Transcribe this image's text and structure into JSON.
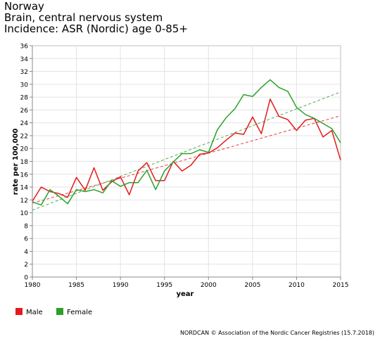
{
  "header": {
    "line1": "Norway",
    "line2": "Brain, central nervous system",
    "line3": "Incidence: ASR (Nordic) age 0-85+"
  },
  "footer": "NORDCAN © Association of the Nordic Cancer Registries (15.7.2018)",
  "chart_data": {
    "type": "line",
    "xlabel": "year",
    "ylabel": "rate per 100,000",
    "xlim": [
      1980,
      2015
    ],
    "ylim": [
      0,
      36
    ],
    "xticks": [
      1980,
      1985,
      1990,
      1995,
      2000,
      2005,
      2010,
      2015
    ],
    "yticks": [
      0,
      2,
      4,
      6,
      8,
      10,
      12,
      14,
      16,
      18,
      20,
      22,
      24,
      26,
      28,
      30,
      32,
      34,
      36
    ],
    "grid": true,
    "legend": "bottom-left",
    "x": [
      1980,
      1981,
      1982,
      1983,
      1984,
      1985,
      1986,
      1987,
      1988,
      1989,
      1990,
      1991,
      1992,
      1993,
      1994,
      1995,
      1996,
      1997,
      1998,
      1999,
      2000,
      2001,
      2002,
      2003,
      2004,
      2005,
      2006,
      2007,
      2008,
      2009,
      2010,
      2011,
      2012,
      2013,
      2014,
      2015
    ],
    "series": [
      {
        "name": "Male",
        "color": "#e41a1c",
        "values": [
          11.8,
          14.0,
          13.3,
          13.0,
          12.4,
          15.5,
          13.5,
          17.0,
          13.5,
          14.8,
          15.6,
          12.8,
          16.5,
          17.8,
          15.0,
          15.0,
          18.0,
          16.5,
          17.4,
          19.1,
          19.3,
          20.1,
          21.3,
          22.4,
          22.2,
          24.9,
          22.3,
          27.7,
          25.0,
          24.5,
          22.8,
          24.4,
          24.7,
          21.8,
          22.8,
          18.2
        ]
      },
      {
        "name": "Female",
        "color": "#2ca02c",
        "values": [
          11.7,
          11.2,
          13.6,
          12.6,
          11.4,
          13.6,
          13.3,
          13.6,
          13.1,
          15.0,
          14.1,
          14.7,
          14.7,
          16.6,
          13.6,
          16.5,
          17.9,
          19.2,
          19.2,
          19.8,
          19.4,
          22.9,
          24.8,
          26.2,
          28.4,
          28.1,
          29.5,
          30.7,
          29.5,
          28.9,
          26.4,
          25.3,
          24.7,
          23.9,
          23.1,
          20.9
        ]
      }
    ],
    "trendlines": [
      {
        "series": "Male",
        "color": "#e41a1c",
        "start": [
          1980,
          11.5
        ],
        "end": [
          2015,
          25.1
        ]
      },
      {
        "series": "Female",
        "color": "#2ca02c",
        "start": [
          1980,
          10.4
        ],
        "end": [
          2015,
          28.8
        ]
      }
    ]
  }
}
